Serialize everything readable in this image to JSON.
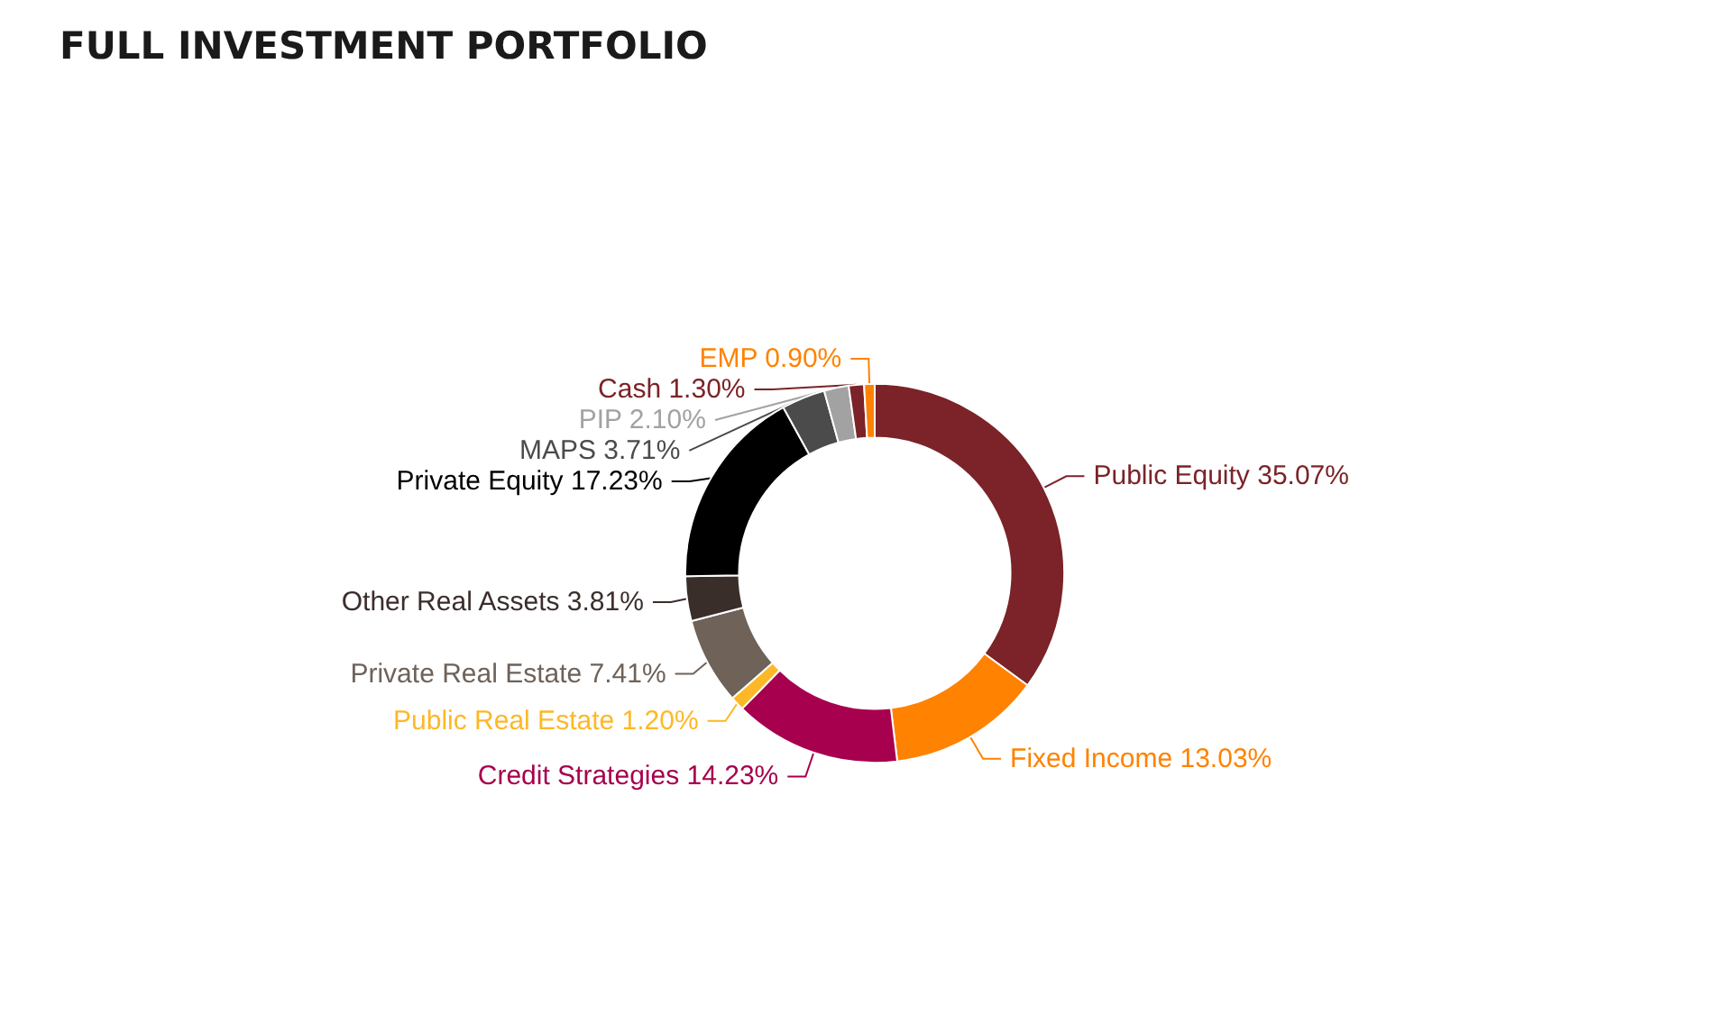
{
  "chart_data": {
    "type": "donut",
    "title": "FULL INVESTMENT PORTFOLIO",
    "categories": [
      "Public Equity",
      "Fixed Income",
      "Credit Strategies",
      "Public Real Estate",
      "Private Real Estate",
      "Other Real Assets",
      "Private Equity",
      "MAPS",
      "PIP",
      "Cash",
      "EMP"
    ],
    "values": [
      35.07,
      13.03,
      14.23,
      1.2,
      7.41,
      3.81,
      17.23,
      3.71,
      2.1,
      1.3,
      0.9
    ],
    "value_labels": [
      "35.07%",
      "13.03%",
      "14.23%",
      "1.20%",
      "7.41%",
      "3.81%",
      "17.23%",
      "3.71%",
      "2.10%",
      "1.30%",
      "0.90%"
    ],
    "colors": [
      "#7b2328",
      "#ff8200",
      "#a6004e",
      "#fdb827",
      "#6e6259",
      "#3a2e2b",
      "#000000",
      "#4b4b4b",
      "#a2a2a2",
      "#7b2328",
      "#ff8200"
    ],
    "legend": false
  }
}
